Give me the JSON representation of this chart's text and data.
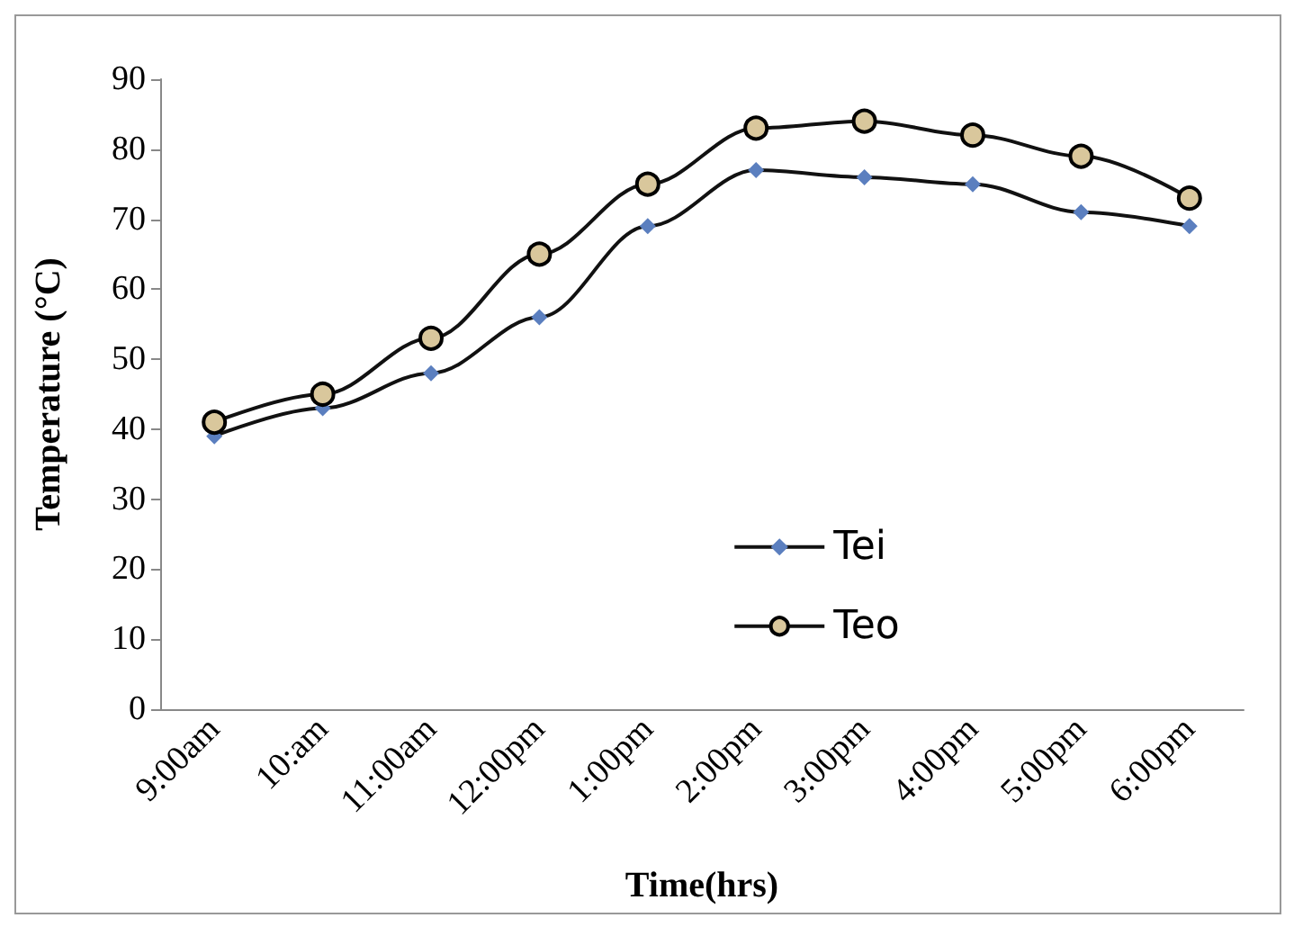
{
  "chart_data": {
    "type": "line",
    "xlabel": "Time(hrs)",
    "ylabel": "Temperature (°C)",
    "categories": [
      "9:00am",
      "10:am",
      "11:00am",
      "12:00pm",
      "1:00pm",
      "2:00pm",
      "3:00pm",
      "4:00pm",
      "5:00pm",
      "6:00pm"
    ],
    "series": [
      {
        "name": "Tei",
        "color": "#5b7fbf",
        "marker": "diamond",
        "values": [
          39,
          43,
          48,
          56,
          69,
          77,
          76,
          75,
          71,
          69
        ]
      },
      {
        "name": "Teo",
        "color": "#d9c79c",
        "marker": "circle",
        "values": [
          41,
          45,
          53,
          65,
          75,
          83,
          84,
          82,
          79,
          73
        ]
      }
    ],
    "ylim": [
      0,
      90
    ],
    "yticks": [
      0,
      10,
      20,
      30,
      40,
      50,
      60,
      70,
      80,
      90
    ],
    "grid": false,
    "legend": "right",
    "line_style": "solid"
  }
}
